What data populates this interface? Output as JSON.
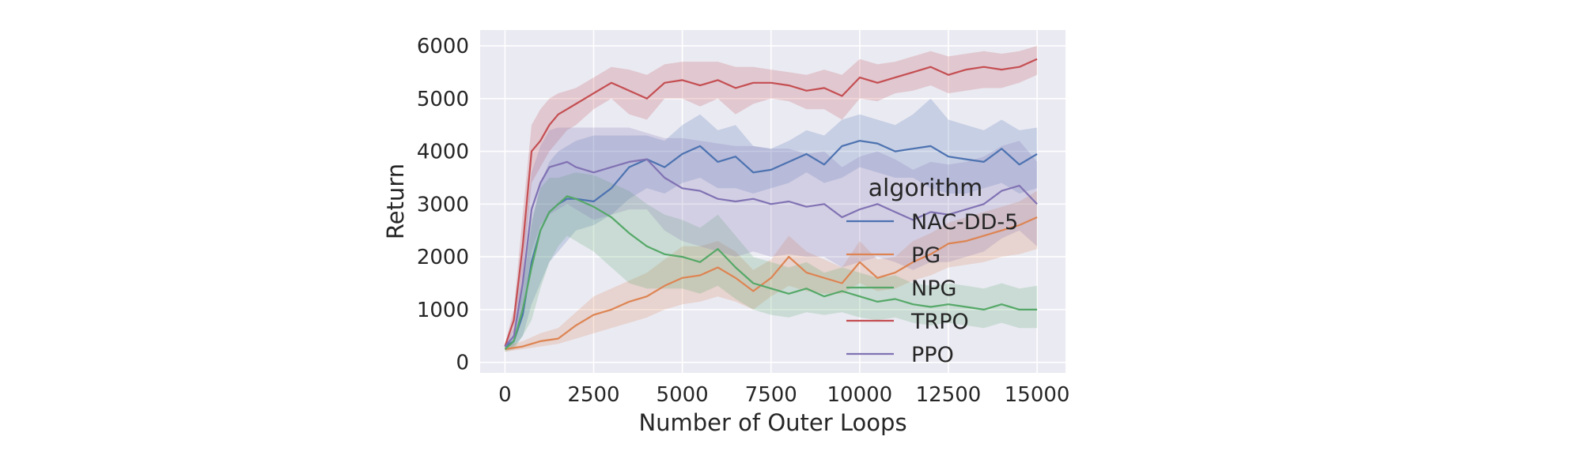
{
  "chart_data": {
    "type": "line",
    "xlabel": "Number of Outer Loops",
    "ylabel": "Return",
    "xlim": [
      -700,
      15800
    ],
    "ylim": [
      -200,
      6300
    ],
    "xticks": [
      0,
      2500,
      5000,
      7500,
      10000,
      12500,
      15000
    ],
    "xtick_labels": [
      "0",
      "2500",
      "5000",
      "7500",
      "10000",
      "12500",
      "15000"
    ],
    "yticks": [
      0,
      1000,
      2000,
      3000,
      4000,
      5000,
      6000
    ],
    "ytick_labels": [
      "0",
      "1000",
      "2000",
      "3000",
      "4000",
      "5000",
      "6000"
    ],
    "grid": true,
    "background": "#eaeaf2",
    "legend": {
      "title": "algorithm",
      "placement": "center-right"
    },
    "series": [
      {
        "name": "NAC-DD-5",
        "color": "#4c72b0",
        "x": [
          0,
          250,
          500,
          750,
          1000,
          1250,
          1500,
          1750,
          2000,
          2500,
          3000,
          3500,
          4000,
          4500,
          5000,
          5500,
          6000,
          6500,
          7000,
          7500,
          8000,
          8500,
          9000,
          9500,
          10000,
          10500,
          11000,
          11500,
          12000,
          12500,
          13000,
          13500,
          14000,
          14500,
          15000
        ],
        "y": [
          300,
          400,
          900,
          1900,
          2500,
          2850,
          3000,
          3100,
          3100,
          3050,
          3300,
          3700,
          3850,
          3700,
          3950,
          4100,
          3800,
          3900,
          3600,
          3650,
          3800,
          3950,
          3750,
          4100,
          4200,
          4150,
          4000,
          4050,
          4100,
          3900,
          3850,
          3800,
          4050,
          3750,
          3950
        ],
        "lower": [
          250,
          300,
          500,
          1100,
          1500,
          1900,
          2100,
          2300,
          2500,
          2600,
          2800,
          3100,
          3300,
          3200,
          3400,
          3500,
          3300,
          3300,
          3200,
          3300,
          3400,
          3600,
          3400,
          3500,
          3700,
          3600,
          3500,
          3500,
          3300,
          3200,
          3200,
          3300,
          3400,
          3200,
          3300
        ],
        "upper": [
          350,
          500,
          1400,
          2600,
          3400,
          3800,
          4000,
          4100,
          4200,
          4300,
          4300,
          4300,
          4300,
          4200,
          4500,
          4700,
          4400,
          4500,
          4100,
          4050,
          4200,
          4400,
          4300,
          4600,
          4700,
          4600,
          4500,
          4700,
          5000,
          4600,
          4500,
          4400,
          4600,
          4400,
          4450
        ]
      },
      {
        "name": "PG",
        "color": "#dd8452",
        "x": [
          0,
          500,
          1000,
          1500,
          2000,
          2500,
          3000,
          3500,
          4000,
          4500,
          5000,
          5500,
          6000,
          6500,
          7000,
          7500,
          8000,
          8500,
          9000,
          9500,
          10000,
          10500,
          11000,
          11500,
          12000,
          12500,
          13000,
          13500,
          14000,
          14500,
          15000
        ],
        "y": [
          250,
          300,
          400,
          450,
          700,
          900,
          1000,
          1150,
          1250,
          1450,
          1600,
          1650,
          1800,
          1600,
          1350,
          1600,
          2000,
          1700,
          1600,
          1500,
          1900,
          1600,
          1700,
          1900,
          2050,
          2250,
          2300,
          2400,
          2500,
          2600,
          2750
        ],
        "lower": [
          200,
          250,
          300,
          350,
          450,
          550,
          650,
          750,
          850,
          1000,
          1100,
          1150,
          1250,
          1150,
          1000,
          1250,
          1450,
          1350,
          1300,
          1300,
          1500,
          1350,
          1400,
          1550,
          1650,
          1800,
          1850,
          1900,
          2000,
          2050,
          2150
        ],
        "upper": [
          300,
          400,
          550,
          650,
          950,
          1250,
          1400,
          1550,
          1700,
          1950,
          2200,
          2200,
          2300,
          2100,
          1750,
          1950,
          2400,
          2100,
          1950,
          1800,
          2300,
          1950,
          2000,
          2300,
          2450,
          2650,
          2750,
          2850,
          2950,
          3050,
          3250
        ]
      },
      {
        "name": "NPG",
        "color": "#55a868",
        "x": [
          0,
          250,
          500,
          750,
          1000,
          1250,
          1500,
          1750,
          2000,
          2500,
          3000,
          3500,
          4000,
          4500,
          5000,
          5500,
          6000,
          6500,
          7000,
          7500,
          8000,
          8500,
          9000,
          9500,
          10000,
          10500,
          11000,
          11500,
          12000,
          12500,
          13000,
          13500,
          14000,
          14500,
          15000
        ],
        "y": [
          250,
          400,
          1000,
          1800,
          2500,
          2850,
          3000,
          3150,
          3100,
          2950,
          2750,
          2450,
          2200,
          2050,
          2000,
          1900,
          2150,
          1800,
          1500,
          1400,
          1300,
          1400,
          1250,
          1350,
          1250,
          1150,
          1200,
          1100,
          1050,
          1100,
          1050,
          1000,
          1100,
          1000,
          1000
        ],
        "lower": [
          200,
          250,
          500,
          800,
          1400,
          1900,
          2200,
          2400,
          2300,
          2100,
          1800,
          1500,
          1400,
          1400,
          1400,
          1300,
          1450,
          1200,
          1000,
          900,
          850,
          950,
          900,
          950,
          850,
          800,
          850,
          750,
          700,
          750,
          700,
          650,
          750,
          650,
          650
        ],
        "upper": [
          300,
          550,
          1500,
          2700,
          3300,
          3500,
          3500,
          3550,
          3600,
          3550,
          3400,
          3250,
          3000,
          2800,
          2700,
          2550,
          2800,
          2400,
          2000,
          1900,
          1800,
          1900,
          1700,
          1800,
          1700,
          1600,
          1650,
          1500,
          1450,
          1500,
          1450,
          1400,
          1500,
          1400,
          1450
        ]
      },
      {
        "name": "TRPO",
        "color": "#c44e52",
        "x": [
          0,
          250,
          500,
          750,
          1000,
          1250,
          1500,
          1750,
          2000,
          2500,
          3000,
          3500,
          4000,
          4500,
          5000,
          5500,
          6000,
          6500,
          7000,
          7500,
          8000,
          8500,
          9000,
          9500,
          10000,
          10500,
          11000,
          11500,
          12000,
          12500,
          13000,
          13500,
          14000,
          14500,
          15000
        ],
        "y": [
          300,
          800,
          2200,
          4000,
          4200,
          4500,
          4700,
          4800,
          4900,
          5100,
          5300,
          5150,
          5000,
          5300,
          5350,
          5250,
          5350,
          5200,
          5300,
          5300,
          5250,
          5150,
          5200,
          5050,
          5400,
          5300,
          5400,
          5500,
          5600,
          5450,
          5550,
          5600,
          5550,
          5600,
          5750
        ],
        "lower": [
          250,
          600,
          1600,
          3400,
          3700,
          4000,
          4200,
          4400,
          4500,
          4800,
          5000,
          4700,
          4600,
          5000,
          5000,
          4850,
          5000,
          4700,
          4900,
          5000,
          4950,
          4800,
          4800,
          4600,
          5000,
          4950,
          5100,
          5150,
          5250,
          5100,
          5150,
          5200,
          5200,
          5300,
          5450
        ],
        "upper": [
          350,
          1000,
          2800,
          4500,
          4800,
          5000,
          5100,
          5150,
          5200,
          5400,
          5600,
          5550,
          5450,
          5650,
          5700,
          5700,
          5700,
          5600,
          5600,
          5550,
          5500,
          5450,
          5550,
          5450,
          5750,
          5650,
          5700,
          5800,
          5900,
          5800,
          5850,
          5900,
          5850,
          5900,
          6000
        ]
      },
      {
        "name": "PPO",
        "color": "#8172b3",
        "x": [
          0,
          250,
          500,
          750,
          1000,
          1250,
          1500,
          1750,
          2000,
          2500,
          3000,
          3500,
          4000,
          4500,
          5000,
          5500,
          6000,
          6500,
          7000,
          7500,
          8000,
          8500,
          9000,
          9500,
          10000,
          10500,
          11000,
          11500,
          12000,
          12500,
          13000,
          13500,
          14000,
          14500,
          15000
        ],
        "y": [
          300,
          500,
          1500,
          2900,
          3400,
          3700,
          3750,
          3800,
          3700,
          3600,
          3700,
          3800,
          3850,
          3500,
          3300,
          3250,
          3100,
          3050,
          3100,
          3000,
          3050,
          2950,
          3000,
          2750,
          2900,
          3000,
          2850,
          2700,
          2850,
          2800,
          2900,
          3000,
          3250,
          3350,
          3000
        ],
        "lower": [
          250,
          350,
          900,
          2100,
          2600,
          2800,
          2900,
          3000,
          2900,
          2700,
          2800,
          2900,
          2900,
          2500,
          2300,
          2200,
          2100,
          2000,
          2100,
          2000,
          2050,
          2000,
          2000,
          1800,
          1900,
          2000,
          1900,
          1750,
          1900,
          1900,
          2000,
          2100,
          2350,
          2500,
          2200
        ],
        "upper": [
          350,
          650,
          2100,
          3600,
          4100,
          4400,
          4450,
          4450,
          4450,
          4450,
          4450,
          4450,
          4350,
          4250,
          4250,
          4200,
          4150,
          4100,
          4100,
          4050,
          4050,
          3950,
          4000,
          3700,
          3900,
          4000,
          3850,
          3650,
          3800,
          3750,
          3800,
          3900,
          4100,
          4200,
          3800
        ]
      }
    ]
  }
}
